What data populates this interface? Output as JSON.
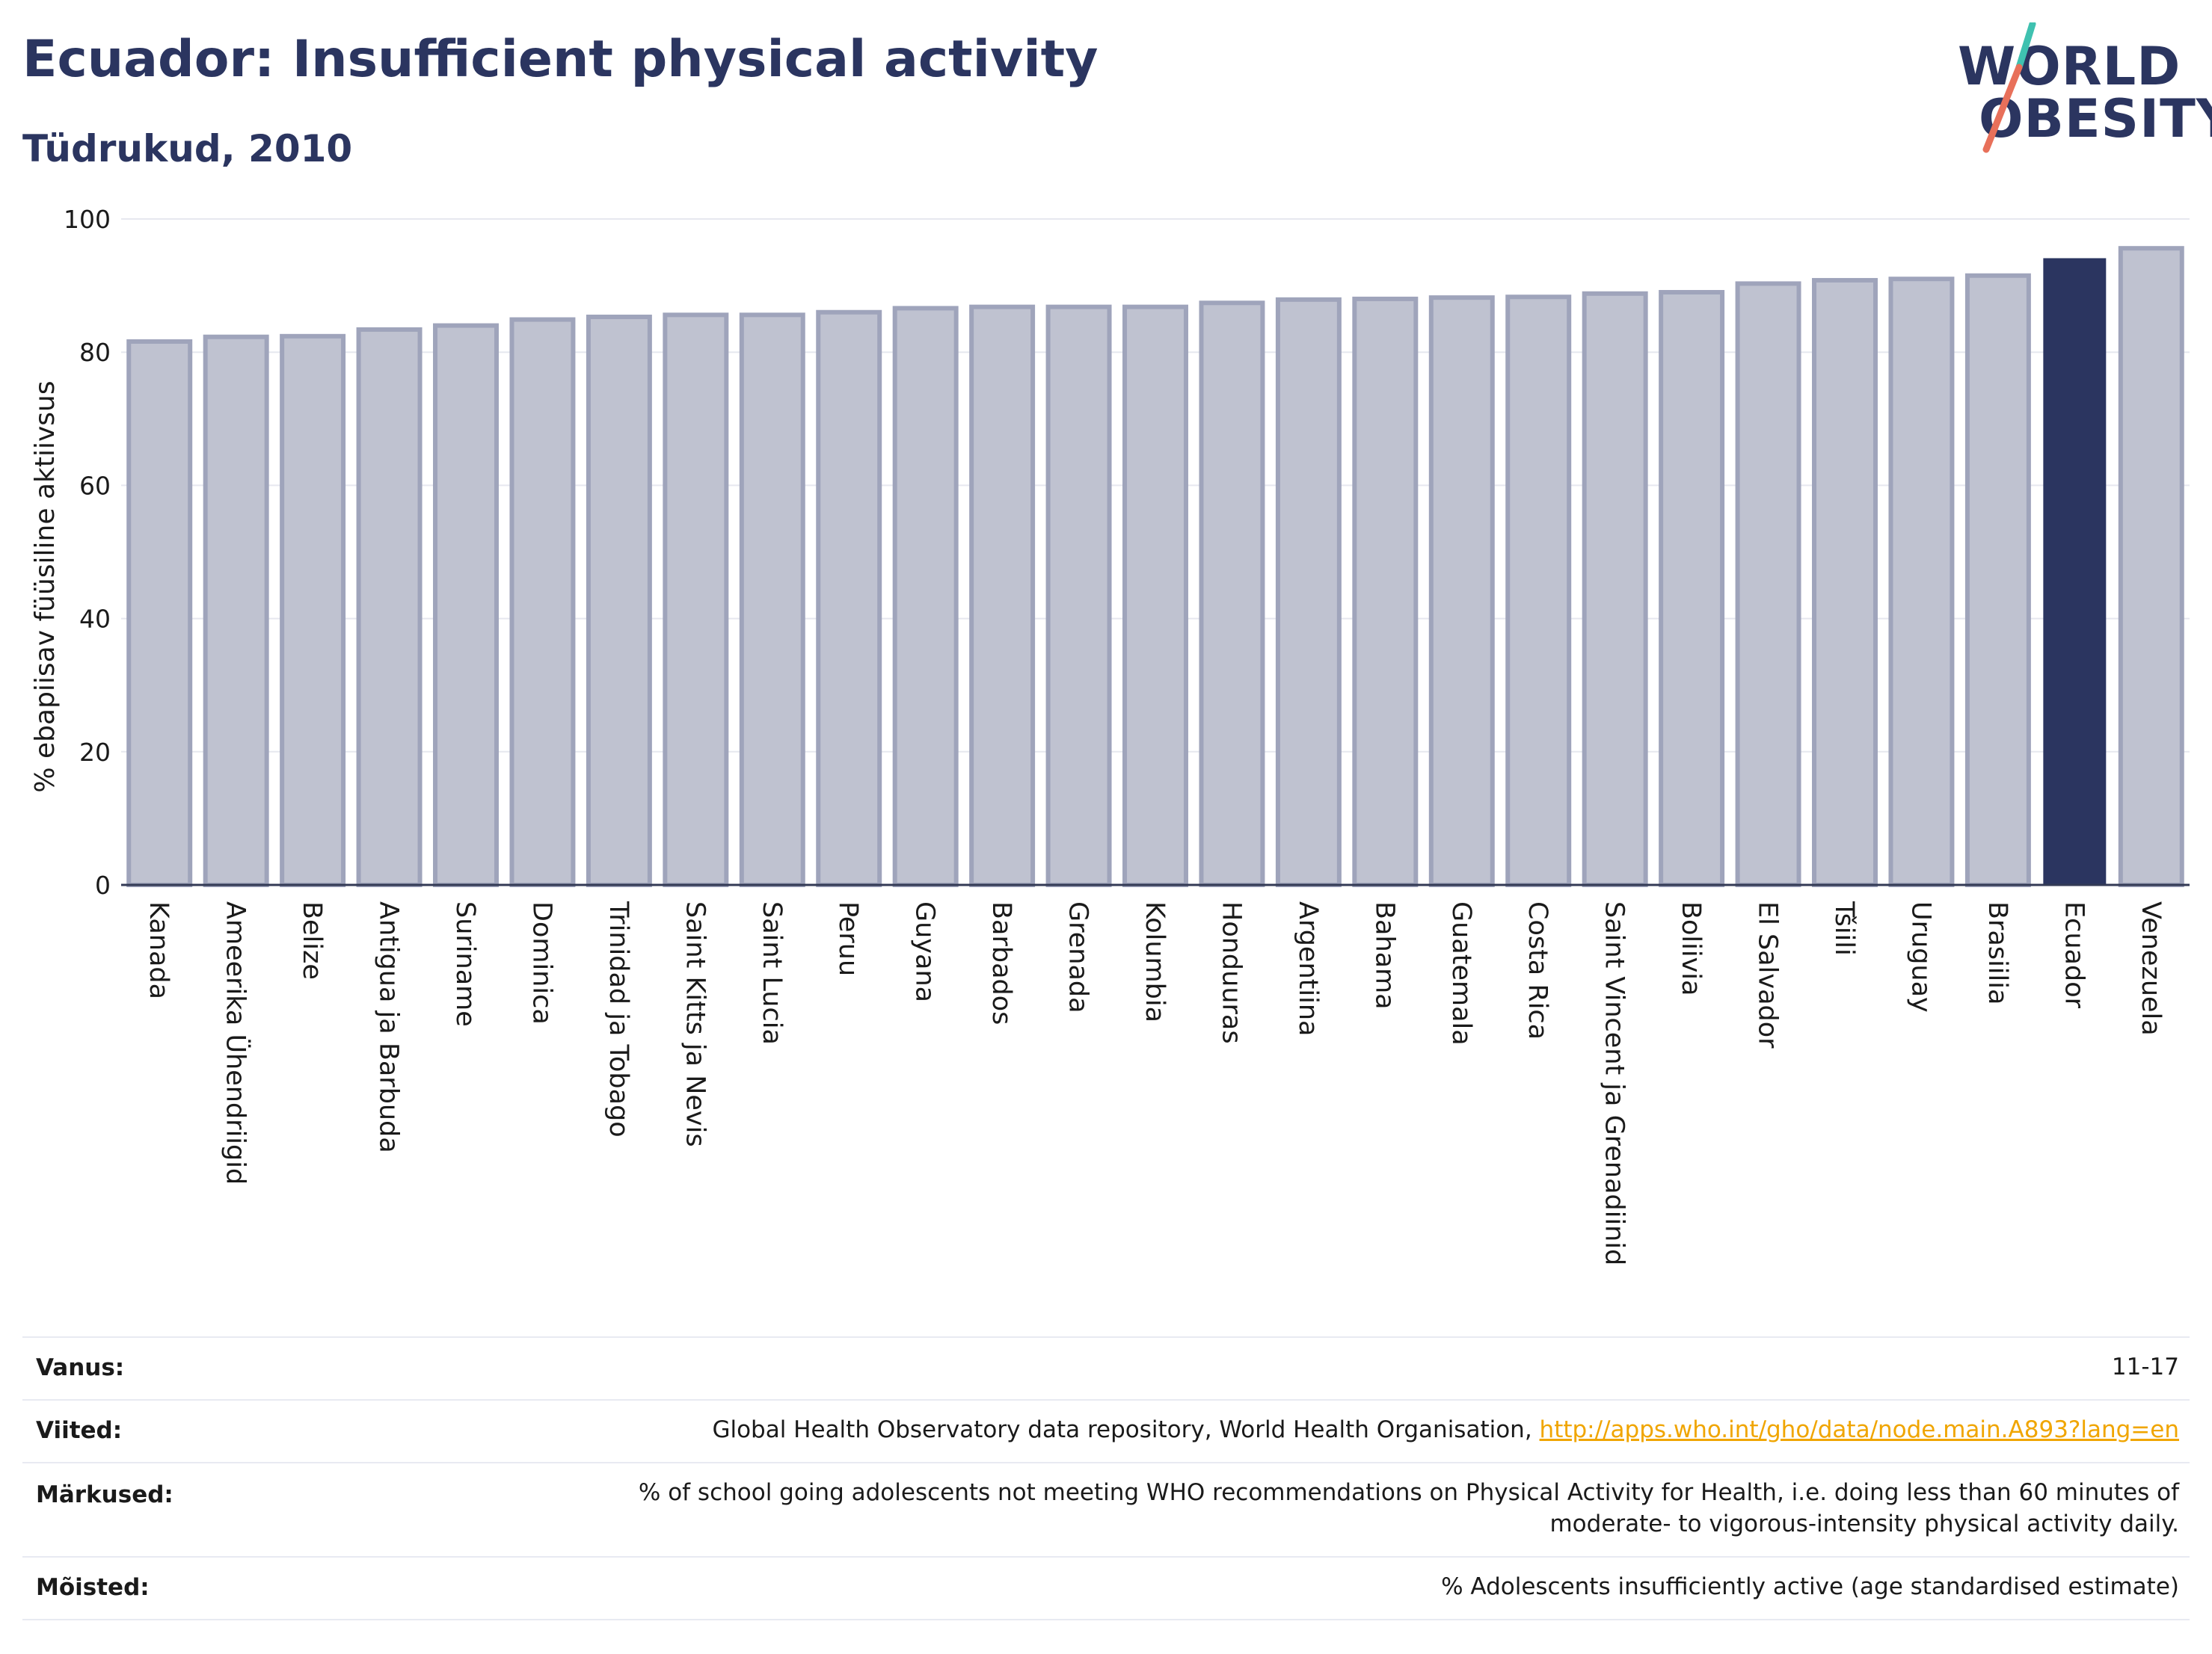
{
  "header": {
    "title": "Ecuador: Insufficient physical activity",
    "subtitle": "Tüdrukud, 2010"
  },
  "logo": {
    "line1": "WORLD",
    "line2": "OBESITY",
    "colors": {
      "accent_teal": "#3fc1b0",
      "accent_red": "#e8705a"
    }
  },
  "chart_data": {
    "type": "bar",
    "title": "Ecuador: Insufficient physical activity",
    "subtitle": "Tüdrukud, 2010",
    "ylabel": "% ebapiisav füüsiline aktiivsus",
    "xlabel": "",
    "ylim": [
      0,
      100
    ],
    "yticks": [
      0,
      20,
      40,
      60,
      80,
      100
    ],
    "grid": true,
    "highlight": "Ecuador",
    "colors": {
      "bar": "#bfc2d0",
      "bar_edge": "#9fa4bb",
      "highlight": "#2b3560"
    },
    "categories": [
      "Kanada",
      "Ameerika Ühendriigid",
      "Belize",
      "Antigua ja Barbuda",
      "Suriname",
      "Dominica",
      "Trinidad ja Tobago",
      "Saint Kitts ja Nevis",
      "Saint Lucia",
      "Peruu",
      "Guyana",
      "Barbados",
      "Grenada",
      "Kolumbia",
      "Honduuras",
      "Argentiina",
      "Bahama",
      "Guatemala",
      "Costa Rica",
      "Saint Vincent ja Grenadiinid",
      "Boliivia",
      "El Salvador",
      "Tšiili",
      "Uruguay",
      "Brasiilia",
      "Ecuador",
      "Venezuela"
    ],
    "values": [
      81.6,
      82.3,
      82.4,
      83.4,
      84.0,
      84.9,
      85.3,
      85.6,
      85.6,
      86.0,
      86.6,
      86.8,
      86.8,
      86.8,
      87.4,
      87.9,
      88.0,
      88.2,
      88.3,
      88.8,
      89.0,
      90.3,
      90.8,
      91.0,
      91.5,
      94.0,
      95.6
    ]
  },
  "info": {
    "age_label": "Vanus:",
    "age_value": "11-17",
    "ref_label": "Viited:",
    "ref_value": "Global Health Observatory data repository, World Health Organisation, ",
    "ref_link": "http://apps.who.int/gho/data/node.main.A893?lang=en",
    "notes_label": "Märkused:",
    "notes_line1": "% of school going adolescents not meeting WHO recommendations on Physical Activity for Health, i.e. doing less than 60 minutes of",
    "notes_line2": "moderate- to vigorous-intensity physical activity daily.",
    "defs_label": "Mõisted:",
    "defs_value": "% Adolescents insufficiently active (age standardised estimate)"
  }
}
